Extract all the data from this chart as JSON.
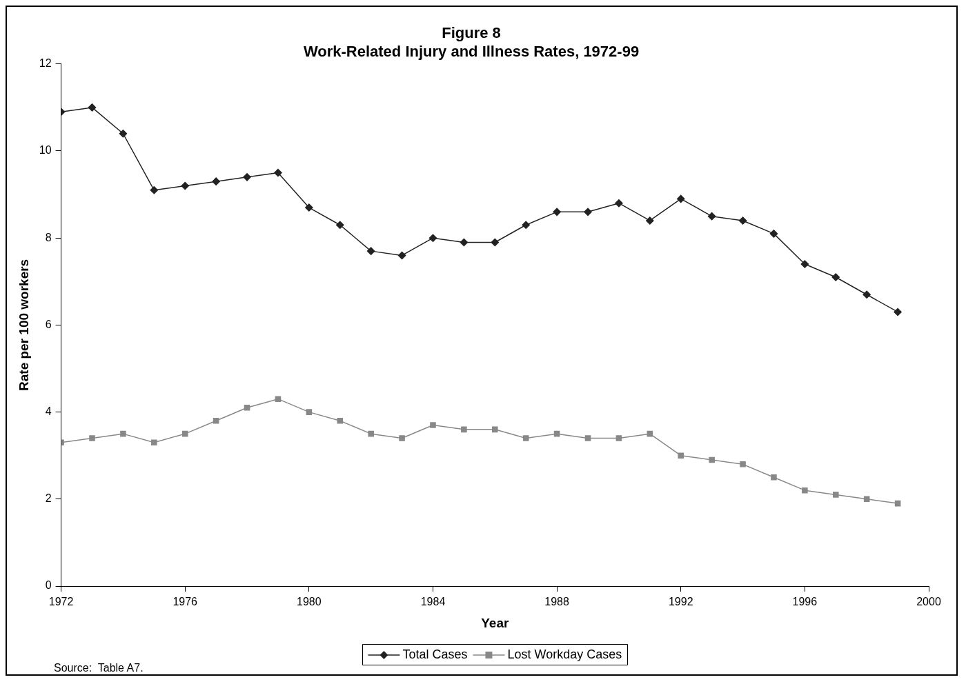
{
  "chart_data": {
    "type": "line",
    "title": [
      "Figure 8",
      "Work-Related Injury and Illness Rates, 1972-99"
    ],
    "xlabel": "Year",
    "ylabel": "Rate per 100 workers",
    "x": [
      1972,
      1973,
      1974,
      1975,
      1976,
      1977,
      1978,
      1979,
      1980,
      1981,
      1982,
      1983,
      1984,
      1985,
      1986,
      1987,
      1988,
      1989,
      1990,
      1991,
      1992,
      1993,
      1994,
      1995,
      1996,
      1997,
      1998,
      1999
    ],
    "series": [
      {
        "name": "Total Cases",
        "color": "#222222",
        "marker": "diamond",
        "values": [
          10.9,
          11.0,
          10.4,
          9.1,
          9.2,
          9.3,
          9.4,
          9.5,
          8.7,
          8.3,
          7.7,
          7.6,
          8.0,
          7.9,
          7.9,
          8.3,
          8.6,
          8.6,
          8.8,
          8.4,
          8.9,
          8.5,
          8.4,
          8.1,
          7.4,
          7.1,
          6.7,
          6.3
        ]
      },
      {
        "name": "Lost Workday Cases",
        "color": "#888888",
        "marker": "square",
        "values": [
          3.3,
          3.4,
          3.5,
          3.3,
          3.5,
          3.8,
          4.1,
          4.3,
          4.0,
          3.8,
          3.5,
          3.4,
          3.7,
          3.6,
          3.6,
          3.4,
          3.5,
          3.4,
          3.4,
          3.5,
          3.0,
          2.9,
          2.8,
          2.5,
          2.2,
          2.1,
          2.0,
          1.9
        ]
      }
    ],
    "xlim": [
      1972,
      2000
    ],
    "xticks": [
      1972,
      1976,
      1980,
      1984,
      1988,
      1992,
      1996,
      2000
    ],
    "ylim": [
      0,
      12
    ],
    "yticks": [
      0,
      2,
      4,
      6,
      8,
      10,
      12
    ],
    "grid": false,
    "legend": "bottom",
    "line_style": "solid",
    "annotations": [
      "Source:  Table A7."
    ]
  }
}
